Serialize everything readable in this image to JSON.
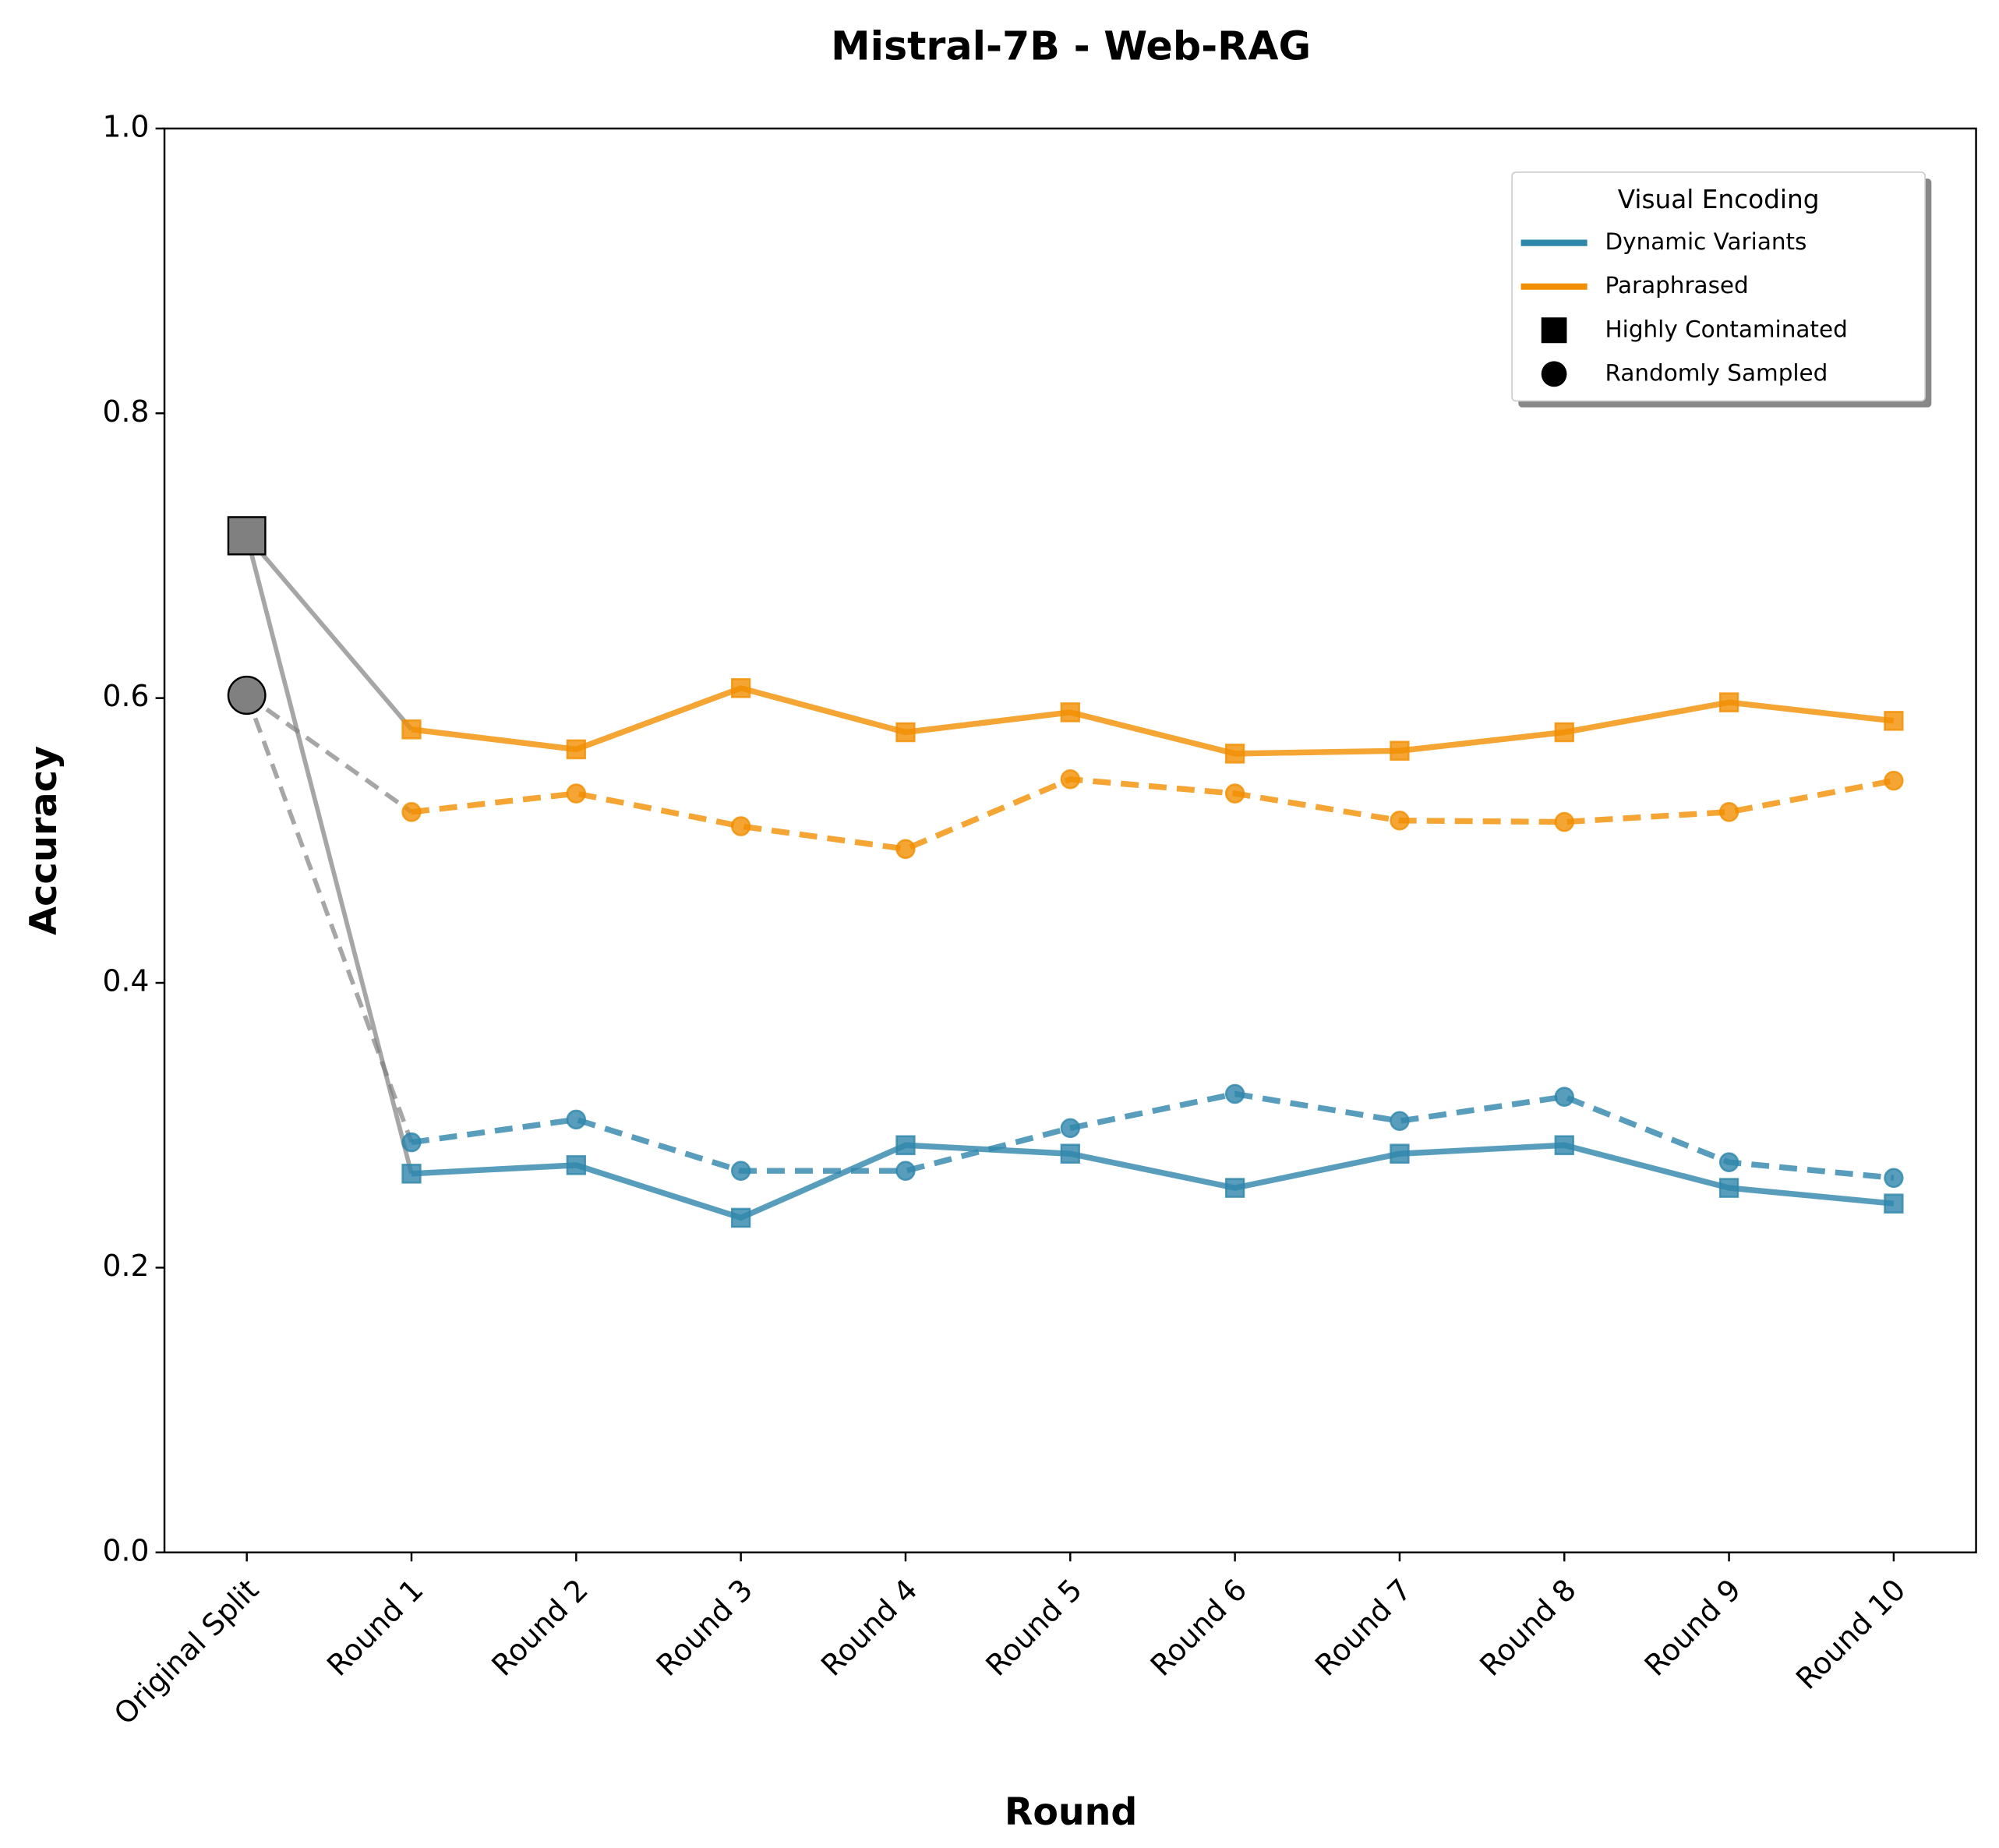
{
  "chart_data": {
    "type": "line",
    "title": "Mistral-7B - Web-RAG",
    "x_label": "Round",
    "y_label": "Accuracy",
    "categories": [
      "Original Split",
      "Round 1",
      "Round 2",
      "Round 3",
      "Round 4",
      "Round 5",
      "Round 6",
      "Round 7",
      "Round 8",
      "Round 9",
      "Round 10"
    ],
    "ylim": [
      0,
      1
    ],
    "yticks": [
      {
        "value": 0,
        "label": "0.0"
      },
      0.2,
      0.4,
      0.6,
      0.8,
      {
        "value": 1,
        "label": "1.0"
      }
    ],
    "original": [
      {
        "marker": "square",
        "color": "#808080",
        "value": 0.714
      },
      {
        "marker": "circle",
        "color": "#808080",
        "value": 0.602
      }
    ],
    "series": [
      {
        "color": "#f18f01",
        "marker": "square",
        "dash": false,
        "values": [
          null,
          0.578,
          0.564,
          0.607,
          0.576,
          0.59,
          0.561,
          0.563,
          0.576,
          0.597,
          0.584
        ]
      },
      {
        "color": "#f18f01",
        "marker": "circle",
        "dash": true,
        "values": [
          null,
          0.52,
          0.533,
          0.51,
          0.494,
          0.543,
          0.533,
          0.514,
          0.513,
          0.52,
          0.542
        ]
      },
      {
        "color": "#2e86ab",
        "marker": "square",
        "dash": false,
        "values": [
          null,
          0.266,
          0.272,
          0.235,
          0.286,
          0.28,
          0.256,
          0.28,
          0.286,
          0.256,
          0.245
        ]
      },
      {
        "color": "#2e86ab",
        "marker": "circle",
        "dash": true,
        "values": [
          null,
          0.288,
          0.304,
          0.268,
          0.268,
          0.298,
          0.322,
          0.303,
          0.32,
          0.274,
          0.263
        ]
      }
    ],
    "legend": {
      "title": "Visual Encoding",
      "position": "upper right",
      "items": [
        {
          "label": "Dynamic Variants",
          "color": "#2e86ab"
        },
        {
          "label": "Paraphrased",
          "color": "#f18f01"
        },
        {
          "label": "Highly Contaminated",
          "marker": "square"
        },
        {
          "label": "Randomly Sampled",
          "marker": "circle"
        }
      ]
    }
  }
}
